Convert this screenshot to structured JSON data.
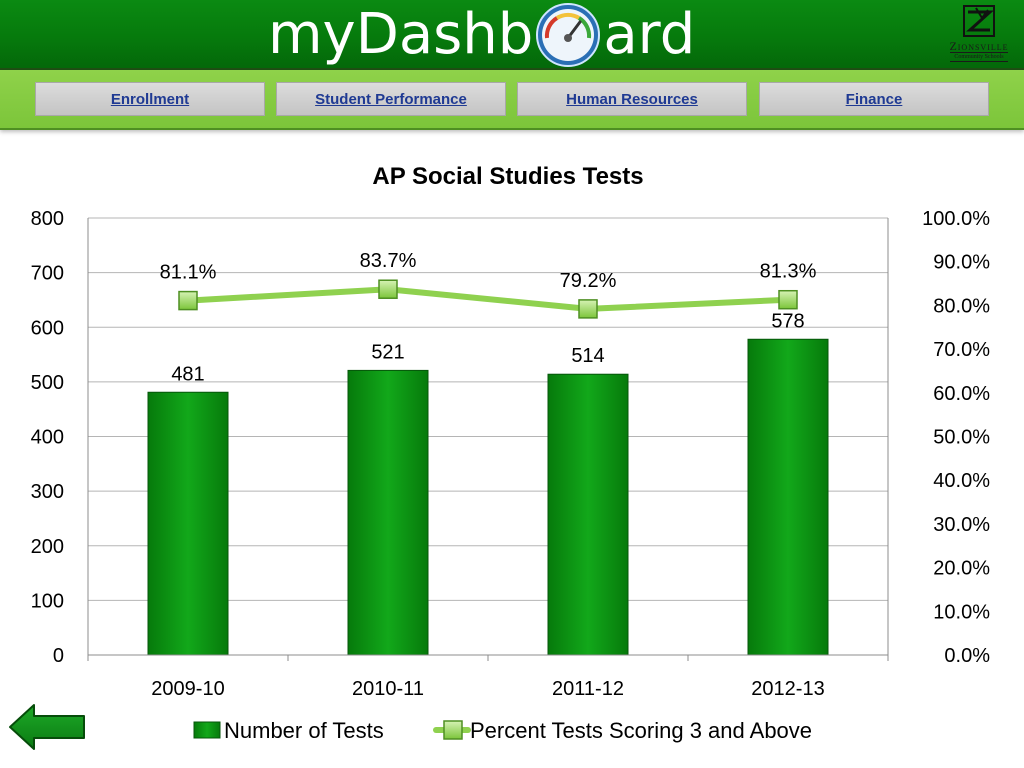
{
  "header": {
    "logo_prefix": "myDashb",
    "logo_suffix": "ard",
    "logo_icon": "speedometer-gauge-icon",
    "brand_name": "Zionsville",
    "brand_sub": "Community Schools",
    "brand_icon": "zionsville-emblem-icon",
    "colors": {
      "bar": "#077a0c",
      "nav": "#86cc42",
      "link": "#1f3a93"
    }
  },
  "nav": {
    "items": [
      {
        "label": "Enrollment"
      },
      {
        "label": "Student Performance"
      },
      {
        "label": "Human Resources"
      },
      {
        "label": "Finance"
      }
    ]
  },
  "chart_data": {
    "type": "bar",
    "title": "AP Social Studies Tests",
    "categories": [
      "2009-10",
      "2010-11",
      "2011-12",
      "2012-13"
    ],
    "series": [
      {
        "name": "Number of Tests",
        "type": "bar",
        "axis": "left",
        "values": [
          481,
          521,
          514,
          578
        ],
        "labels": [
          "481",
          "521",
          "514",
          "578"
        ],
        "color": "#0a8a10"
      },
      {
        "name": "Percent Tests Scoring 3 and Above",
        "type": "line",
        "axis": "right",
        "values": [
          81.1,
          83.7,
          79.2,
          81.3
        ],
        "labels": [
          "81.1%",
          "83.7%",
          "79.2%",
          "81.3%"
        ],
        "color": "#8fd14f"
      }
    ],
    "ylim": [
      0,
      800
    ],
    "yticks": [
      "0",
      "100",
      "200",
      "300",
      "400",
      "500",
      "600",
      "700",
      "800"
    ],
    "y2lim": [
      0,
      100
    ],
    "y2ticks": [
      "0.0%",
      "10.0%",
      "20.0%",
      "30.0%",
      "40.0%",
      "50.0%",
      "60.0%",
      "70.0%",
      "80.0%",
      "90.0%",
      "100.0%"
    ],
    "grid": true,
    "legend": "bottom"
  },
  "footer": {
    "back_icon": "back-arrow-icon"
  }
}
